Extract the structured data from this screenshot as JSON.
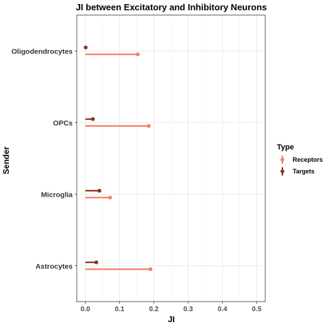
{
  "chart_data": {
    "type": "lollipop",
    "title": "JI between Excitatory and Inhibitory Neurons",
    "xlabel": "JI",
    "ylabel": "Sender",
    "xlim": [
      -0.025,
      0.525
    ],
    "x_ticks": [
      0.0,
      0.1,
      0.2,
      0.3,
      0.4,
      0.5
    ],
    "x_tick_labels": [
      "0.0",
      "0.1",
      "0.2",
      "0.3",
      "0.4",
      "0.5"
    ],
    "categories": [
      "Oligodendrocytes",
      "OPCs",
      "Microglia",
      "Astrocytes"
    ],
    "grid": true,
    "legend": {
      "title": "Type",
      "position": "right"
    },
    "series": [
      {
        "name": "Receptors",
        "color": "#f47f6a",
        "values": [
          0.153,
          0.185,
          0.072,
          0.19
        ]
      },
      {
        "name": "Targets",
        "color": "#8b3222",
        "values": [
          0.001,
          0.022,
          0.041,
          0.032
        ]
      }
    ]
  }
}
